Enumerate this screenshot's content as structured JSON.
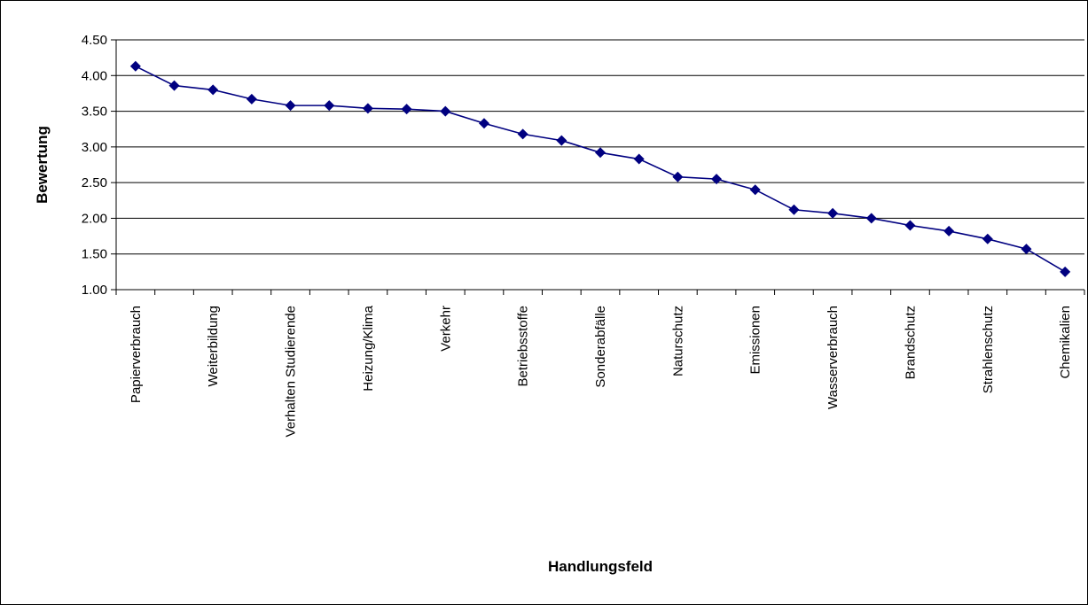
{
  "chart_data": {
    "type": "line",
    "xlabel": "Handlungsfeld",
    "ylabel": "Bewertung",
    "ylim": [
      1.0,
      4.5
    ],
    "y_ticks": [
      "1.00",
      "1.50",
      "2.00",
      "2.50",
      "3.00",
      "3.50",
      "4.00",
      "4.50"
    ],
    "grid": "horizontal",
    "categories": [
      "Papierverbrauch",
      "",
      "Weiterbildung",
      "",
      "Verhalten Studierende",
      "",
      "Heizung/Klima",
      "",
      "Verkehr",
      "",
      "Betriebsstoffe",
      "",
      "Sonderabfälle",
      "",
      "Naturschutz",
      "",
      "Emissionen",
      "",
      "Wasserverbrauch",
      "",
      "Brandschutz",
      "",
      "Strahlenschutz",
      "",
      "Chemikalien"
    ],
    "series": [
      {
        "values": [
          4.13,
          3.86,
          3.8,
          3.67,
          3.58,
          3.58,
          3.54,
          3.53,
          3.5,
          3.33,
          3.18,
          3.09,
          2.92,
          2.83,
          2.58,
          2.55,
          2.4,
          2.12,
          2.07,
          2.0,
          1.9,
          1.82,
          1.71,
          1.57,
          1.25
        ],
        "color": "#000080"
      }
    ]
  }
}
